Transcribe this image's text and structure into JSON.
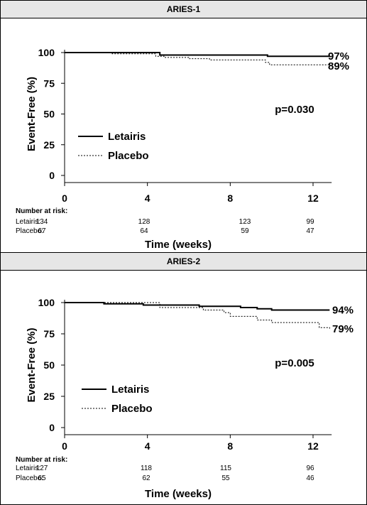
{
  "chart_data": [
    {
      "type": "line",
      "panel_title": "ARIES-1",
      "xlabel": "Time (weeks)",
      "ylabel": "Event-Free (%)",
      "xlim": [
        0,
        13
      ],
      "ylim": [
        0,
        100
      ],
      "x_ticks": [
        "0",
        "4",
        "8",
        "12"
      ],
      "y_ticks": [
        "100",
        "75",
        "50",
        "25",
        "0"
      ],
      "p_value": "p=0.030",
      "series": [
        {
          "name": "Letairis",
          "style": "solid",
          "end_label": "97%",
          "points": [
            [
              0,
              100
            ],
            [
              2.5,
              100
            ],
            [
              4.6,
              98
            ],
            [
              9.5,
              98
            ],
            [
              9.8,
              97
            ],
            [
              12.8,
              97
            ]
          ]
        },
        {
          "name": "Placebo",
          "style": "dotted",
          "end_label": "89%",
          "points": [
            [
              0,
              100
            ],
            [
              2.3,
              100
            ],
            [
              2.3,
              99
            ],
            [
              4.3,
              99
            ],
            [
              4.4,
              97
            ],
            [
              4.8,
              96
            ],
            [
              6,
              95
            ],
            [
              7,
              94
            ],
            [
              9.6,
              94
            ],
            [
              9.7,
              92
            ],
            [
              9.9,
              90
            ],
            [
              12.8,
              89
            ]
          ]
        }
      ],
      "risk_table": {
        "header": "Number at risk:",
        "rows": [
          {
            "label": "Letairis:",
            "values": [
              "134",
              "128",
              "123",
              "99"
            ]
          },
          {
            "label": "Placebo:",
            "values": [
              "67",
              "64",
              "59",
              "47"
            ]
          }
        ]
      }
    },
    {
      "type": "line",
      "panel_title": "ARIES-2",
      "xlabel": "Time (weeks)",
      "ylabel": "Event-Free (%)",
      "xlim": [
        0,
        13
      ],
      "ylim": [
        0,
        100
      ],
      "x_ticks": [
        "0",
        "4",
        "8",
        "12"
      ],
      "y_ticks": [
        "100",
        "75",
        "50",
        "25",
        "0"
      ],
      "p_value": "p=0.005",
      "series": [
        {
          "name": "Letairis",
          "style": "solid",
          "end_label": "94%",
          "points": [
            [
              0,
              100
            ],
            [
              1.0,
              100
            ],
            [
              1.9,
              99
            ],
            [
              3.8,
              98
            ],
            [
              6.5,
              97
            ],
            [
              8.5,
              96
            ],
            [
              9.3,
              95
            ],
            [
              10,
              94
            ],
            [
              12.8,
              94
            ]
          ]
        },
        {
          "name": "Placebo",
          "style": "dotted",
          "end_label": "79%",
          "points": [
            [
              0,
              100
            ],
            [
              4.6,
              100
            ],
            [
              4.6,
              96
            ],
            [
              6.7,
              94
            ],
            [
              7.7,
              92
            ],
            [
              8,
              89
            ],
            [
              9.3,
              86
            ],
            [
              10,
              84
            ],
            [
              12.2,
              84
            ],
            [
              12.3,
              80
            ],
            [
              12.8,
              79
            ]
          ]
        }
      ],
      "risk_table": {
        "header": "Number at risk:",
        "rows": [
          {
            "label": "Letairis:",
            "values": [
              "127",
              "118",
              "115",
              "96"
            ]
          },
          {
            "label": "Placebo:",
            "values": [
              "65",
              "62",
              "55",
              "46"
            ]
          }
        ]
      }
    }
  ]
}
